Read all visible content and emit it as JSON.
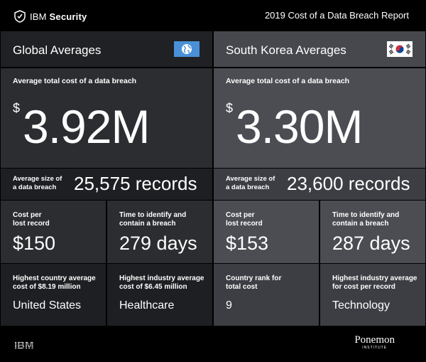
{
  "header": {
    "brand_name": "IBM",
    "brand_suffix": "Security",
    "report_title": "2019 Cost of a Data Breach Report"
  },
  "global": {
    "title": "Global Averages",
    "flag_icon": "globe-icon",
    "avg_cost_label": "Average total cost of a data breach",
    "currency": "$",
    "avg_cost_value": "3.92M",
    "size_label_1": "Average size of",
    "size_label_2": "a data breach",
    "size_value": "25,575 records",
    "cost_per_record_label_1": "Cost per",
    "cost_per_record_label_2": "lost record",
    "cost_per_record_value": "$150",
    "time_label_1": "Time to identify and",
    "time_label_2": "contain a breach",
    "time_value": "279 days",
    "highest_country_label_1": "Highest country average",
    "highest_country_label_2": "cost of $8.19 million",
    "highest_country_value": "United States",
    "highest_industry_label_1": "Highest industry average",
    "highest_industry_label_2": "cost of $6.45 million",
    "highest_industry_value": "Healthcare"
  },
  "korea": {
    "title": "South Korea Averages",
    "flag_icon": "south-korea-flag-icon",
    "avg_cost_label": "Average total cost of a data breach",
    "currency": "$",
    "avg_cost_value": "3.30M",
    "size_label_1": "Average size of",
    "size_label_2": "a data breach",
    "size_value": "23,600 records",
    "cost_per_record_label_1": "Cost per",
    "cost_per_record_label_2": "lost record",
    "cost_per_record_value": "$153",
    "time_label_1": "Time to identify and",
    "time_label_2": "contain a breach",
    "time_value": "287 days",
    "rank_label_1": "Country rank for",
    "rank_label_2": "total cost",
    "rank_value": "9",
    "highest_industry_label_1": "Highest industry average",
    "highest_industry_label_2": "for cost per record",
    "highest_industry_value": "Technology"
  },
  "footer": {
    "ibm_logo": "IBM",
    "partner_name": "Ponemon",
    "partner_sub": "INSTITUTE"
  },
  "colors": {
    "background": "#000000",
    "global_panel": "#2b2d30",
    "korea_panel": "#4b4d53",
    "globe_blue": "#4a90d9"
  }
}
